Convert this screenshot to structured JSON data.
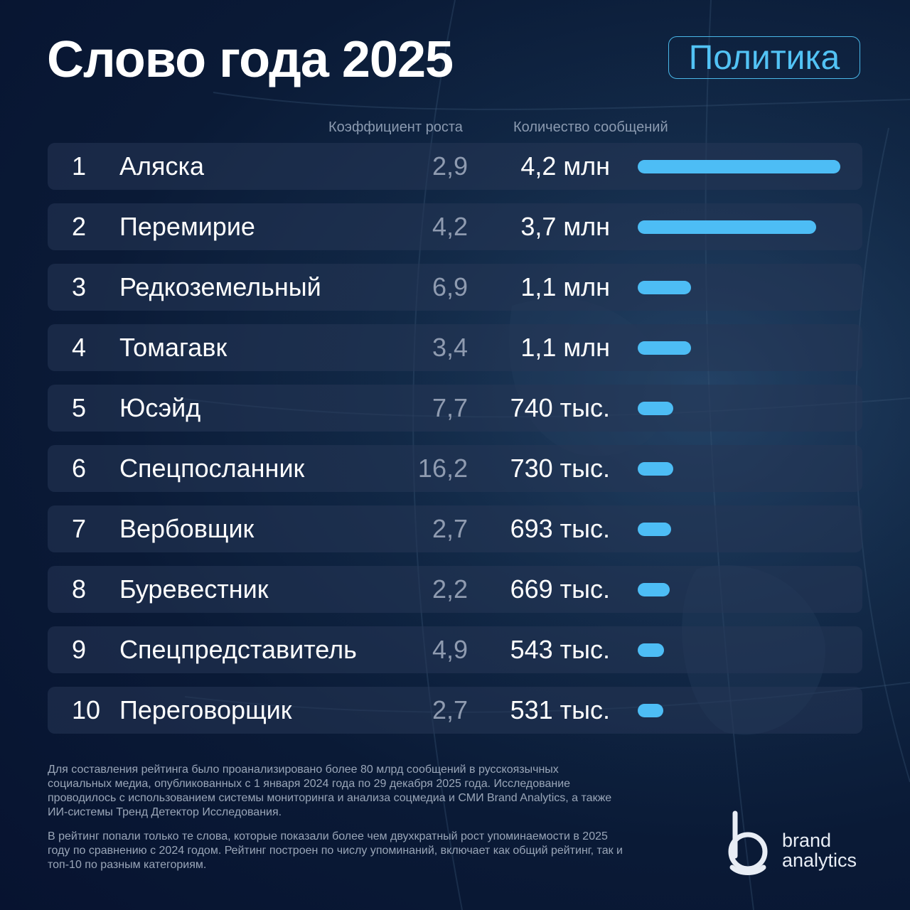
{
  "header": {
    "title": "Слово года 2025",
    "category": "Политика"
  },
  "columns": {
    "growth": "Коэффициент роста",
    "count": "Количество сообщений"
  },
  "chart_data": {
    "type": "bar",
    "title": "Слово года 2025",
    "categories": [
      "Аляска",
      "Перемирие",
      "Редкоземельный",
      "Томагавк",
      "Юсэйд",
      "Спецпосланник",
      "Вербовщик",
      "Буревестник",
      "Спецпредставитель",
      "Переговорщик"
    ],
    "series": [
      {
        "name": "Количество сообщений",
        "values": [
          4200000,
          3700000,
          1100000,
          1100000,
          740000,
          730000,
          693000,
          669000,
          543000,
          531000
        ]
      }
    ],
    "rows": [
      {
        "rank": "1",
        "word": "Аляска",
        "growth": "2,9",
        "count": "4,2 млн"
      },
      {
        "rank": "2",
        "word": "Перемирие",
        "growth": "4,2",
        "count": "3,7 млн"
      },
      {
        "rank": "3",
        "word": "Редкоземельный",
        "growth": "6,9",
        "count": "1,1 млн"
      },
      {
        "rank": "4",
        "word": "Томагавк",
        "growth": "3,4",
        "count": "1,1 млн"
      },
      {
        "rank": "5",
        "word": "Юсэйд",
        "growth": "7,7",
        "count": "740 тыс."
      },
      {
        "rank": "6",
        "word": "Спецпосланник",
        "growth": "16,2",
        "count": "730 тыс."
      },
      {
        "rank": "7",
        "word": "Вербовщик",
        "growth": "2,7",
        "count": "693 тыс."
      },
      {
        "rank": "8",
        "word": "Буревестник",
        "growth": "2,2",
        "count": "669 тыс."
      },
      {
        "rank": "9",
        "word": "Спецпредставитель",
        "growth": "4,9",
        "count": "543 тыс."
      },
      {
        "rank": "10",
        "word": "Переговорщик",
        "growth": "2,7",
        "count": "531 тыс."
      }
    ],
    "colors": {
      "bar": "#4dbdf5",
      "row_background": "#263656",
      "growth_text": "#8f9bb0"
    },
    "xlabel": "",
    "ylabel": "",
    "grid": false
  },
  "footnotes": {
    "methodology": "Для составления рейтинга было проанализировано более 80 млрд сообщений в русскоязычных социальных медиа, опубликованных с 1 января 2024 года по 29 декабря 2025 года. Исследование проводилось с использованием системы мониторинга и анализа соцмедиа и СМИ Brand Analytics, а также ИИ-системы Тренд Детектор Исследования.",
    "criteria": "В рейтинг попали только те слова, которые показали более чем двухкратный рост упоминаемости в 2025 году по сравнению с 2024 годом. Рейтинг построен по числу упоминаний, включает как общий рейтинг, так и топ-10 по разным категориям."
  },
  "logo": {
    "line1": "brand",
    "line2": "analytics"
  }
}
